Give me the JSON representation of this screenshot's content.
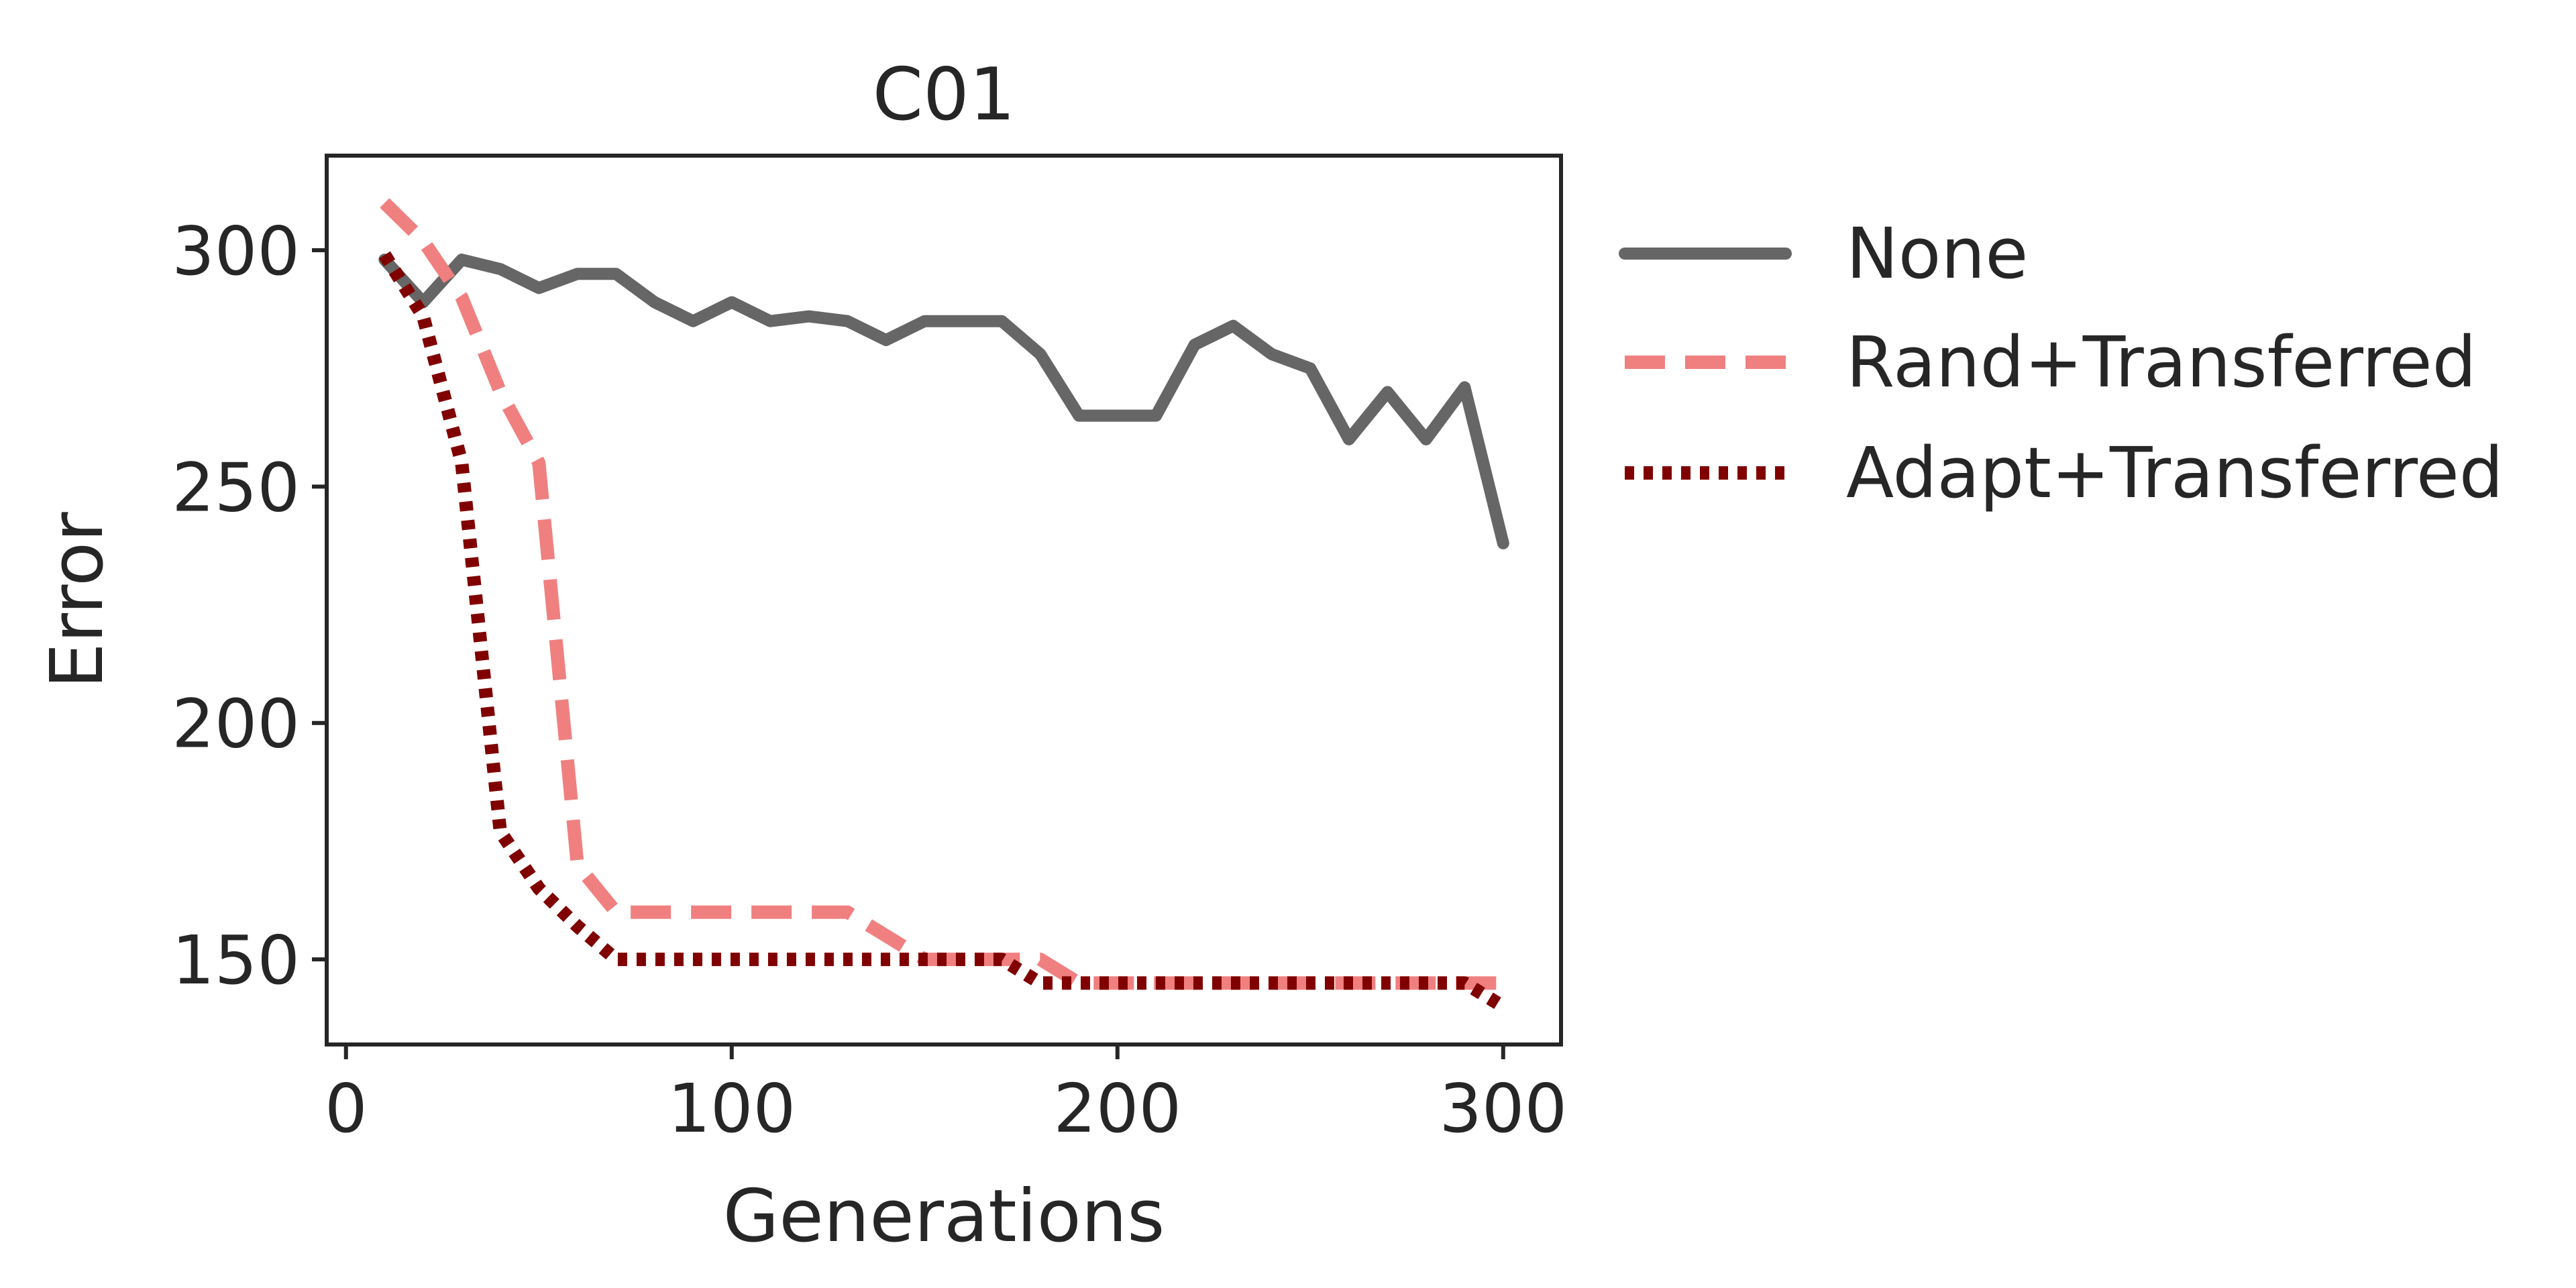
{
  "chart_data": {
    "type": "line",
    "title": "C01",
    "xlabel": "Generations",
    "ylabel": "Error",
    "xlim": [
      -5,
      315
    ],
    "ylim": [
      132,
      320
    ],
    "xticks": [
      0,
      100,
      200,
      300
    ],
    "yticks": [
      150,
      200,
      250,
      300
    ],
    "grid": false,
    "legend_position": "outside-right",
    "series": [
      {
        "name": "None",
        "color": "#666666",
        "style": "solid",
        "x": [
          10,
          20,
          30,
          40,
          50,
          60,
          70,
          80,
          90,
          100,
          110,
          120,
          130,
          140,
          150,
          160,
          170,
          180,
          190,
          200,
          210,
          220,
          230,
          240,
          250,
          260,
          270,
          280,
          290,
          300
        ],
        "y": [
          298,
          289,
          298,
          296,
          292,
          295,
          295,
          289,
          285,
          289,
          285,
          286,
          285,
          281,
          285,
          285,
          285,
          278,
          265,
          265,
          265,
          280,
          284,
          278,
          275,
          260,
          270,
          260,
          271,
          238
        ]
      },
      {
        "name": "Rand+Transferred",
        "color": "#f08080",
        "style": "dashed",
        "x": [
          10,
          20,
          30,
          40,
          50,
          60,
          70,
          80,
          90,
          100,
          110,
          120,
          130,
          140,
          150,
          160,
          170,
          180,
          190,
          200,
          210,
          220,
          230,
          240,
          250,
          260,
          270,
          280,
          290,
          300
        ],
        "y": [
          310,
          302,
          290,
          270,
          255,
          170,
          160,
          160,
          160,
          160,
          160,
          160,
          160,
          155,
          150,
          150,
          150,
          150,
          145,
          145,
          145,
          145,
          145,
          145,
          145,
          145,
          145,
          145,
          145,
          145
        ]
      },
      {
        "name": "Adapt+Transferred",
        "color": "#800000",
        "style": "dotted",
        "x": [
          10,
          20,
          30,
          40,
          50,
          60,
          70,
          80,
          90,
          100,
          110,
          120,
          130,
          140,
          150,
          160,
          170,
          180,
          190,
          200,
          210,
          220,
          230,
          240,
          250,
          260,
          270,
          280,
          290,
          300
        ],
        "y": [
          299,
          286,
          255,
          177,
          165,
          157,
          150,
          150,
          150,
          150,
          150,
          150,
          150,
          150,
          150,
          150,
          150,
          145,
          145,
          145,
          145,
          145,
          145,
          145,
          145,
          145,
          145,
          145,
          145,
          140
        ]
      }
    ]
  }
}
